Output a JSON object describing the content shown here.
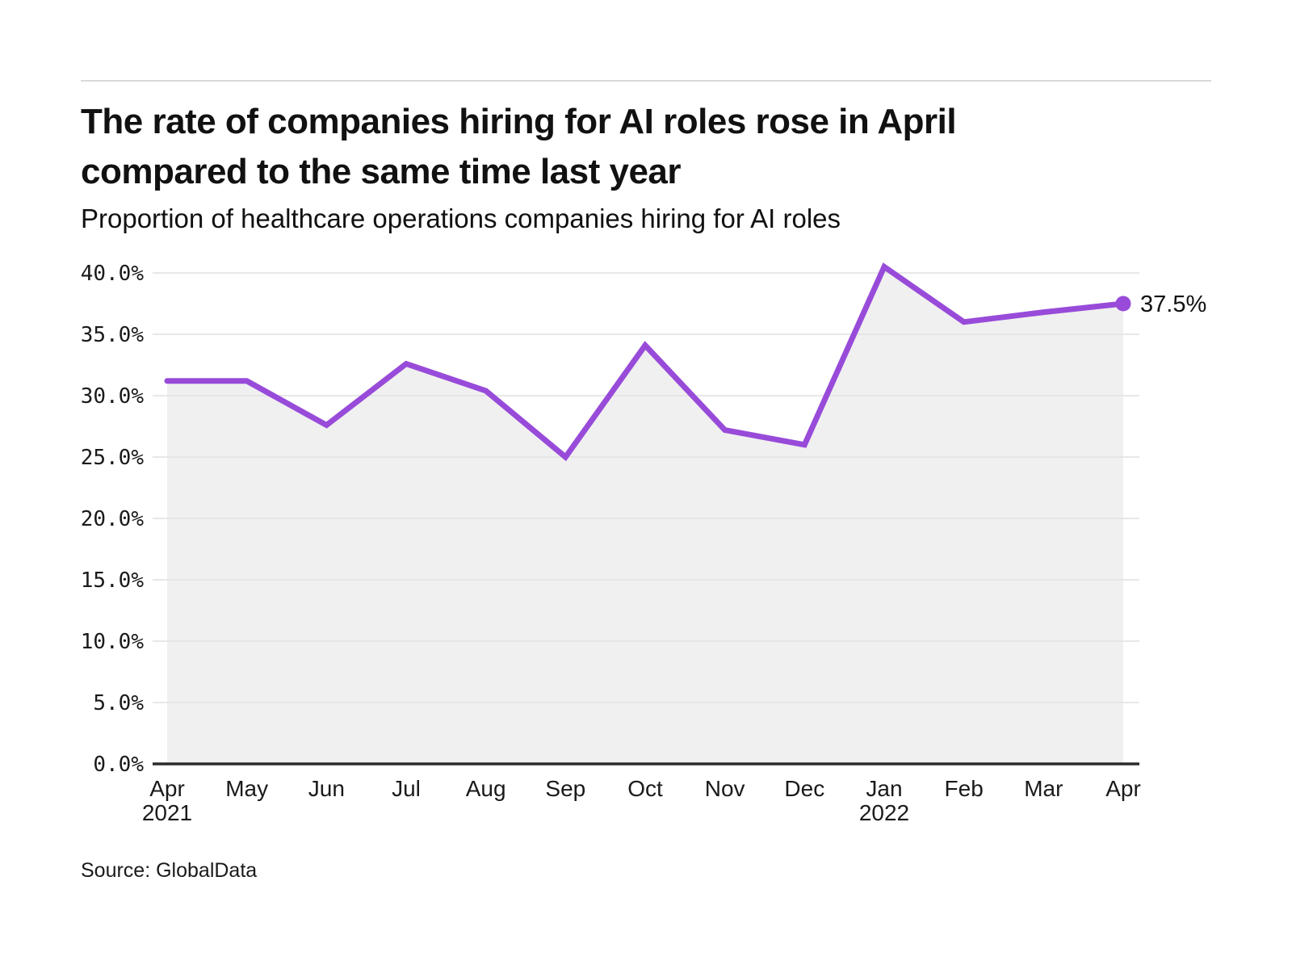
{
  "header": {
    "title_line1": "The rate of companies hiring for AI roles rose in April",
    "title_line2": "compared to the same time last year",
    "subtitle": "Proportion of healthcare operations companies hiring for AI roles"
  },
  "footer": {
    "source": "Source: GlobalData"
  },
  "chart_data": {
    "type": "area",
    "title": "The rate of companies hiring for AI roles rose in April compared to the same time last year",
    "subtitle": "Proportion of healthcare operations companies hiring for AI roles",
    "categories": [
      "Apr",
      "May",
      "Jun",
      "Jul",
      "Aug",
      "Sep",
      "Oct",
      "Nov",
      "Dec",
      "Jan",
      "Feb",
      "Mar",
      "Apr"
    ],
    "category_year_labels": [
      {
        "index": 0,
        "label": "2021"
      },
      {
        "index": 9,
        "label": "2022"
      }
    ],
    "values": [
      31.2,
      31.2,
      27.6,
      32.6,
      30.4,
      25.0,
      34.1,
      27.2,
      26.0,
      40.5,
      36.0,
      36.8,
      37.5
    ],
    "series_name": "Proportion of healthcare operations companies hiring for AI roles",
    "xlabel": "",
    "ylabel": "",
    "ylim": [
      0,
      40
    ],
    "y_ticks": [
      "0.0%",
      "5.0%",
      "10.0%",
      "15.0%",
      "20.0%",
      "25.0%",
      "30.0%",
      "35.0%",
      "40.0%"
    ],
    "grid": true,
    "legend_position": "none",
    "last_point_label": "37.5%",
    "colors": {
      "line": "#984BD9",
      "area_fill": "#F0F0F0",
      "gridline": "#E1E1E1",
      "axis": "#2B2B2B",
      "tick_text": "#1A1A1A",
      "annotation_text": "#111111"
    }
  }
}
